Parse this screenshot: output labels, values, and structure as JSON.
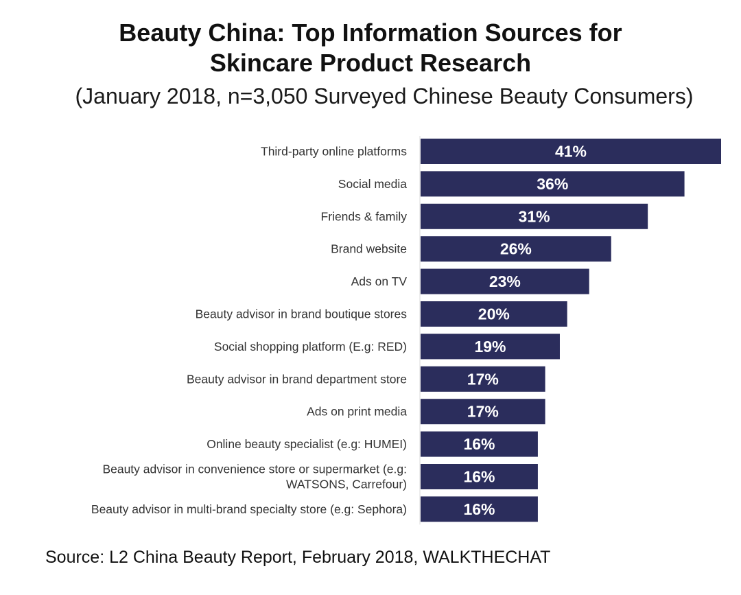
{
  "chart_data": {
    "type": "bar",
    "orientation": "horizontal",
    "title": [
      "Beauty China: Top Information Sources for",
      "Skincare Product Research"
    ],
    "subtitle": "(January 2018, n=3,050 Surveyed Chinese Beauty Consumers)",
    "categories": [
      [
        "Third-party online platforms"
      ],
      [
        "Social media"
      ],
      [
        "Friends & family"
      ],
      [
        "Brand website"
      ],
      [
        "Ads on TV"
      ],
      [
        "Beauty advisor in brand boutique stores"
      ],
      [
        "Social shopping platform (E.g: RED)"
      ],
      [
        "Beauty advisor in brand department store"
      ],
      [
        "Ads on print media"
      ],
      [
        "Online beauty specialist (e.g: HUMEI)"
      ],
      [
        "Beauty advisor in convenience store or supermarket (e.g:",
        "WATSONS, Carrefour)"
      ],
      [
        "Beauty advisor in multi-brand specialty store (e.g: Sephora)"
      ]
    ],
    "values": [
      41,
      36,
      31,
      26,
      23,
      20,
      19,
      17,
      17,
      16,
      16,
      16
    ],
    "value_labels": [
      "41%",
      "36%",
      "31%",
      "26%",
      "23%",
      "20%",
      "19%",
      "17%",
      "17%",
      "16%",
      "16%",
      "16%"
    ],
    "unit": "%",
    "xlim": [
      0,
      41
    ],
    "xlabel": "",
    "ylabel": "",
    "grid": false,
    "legend": "none",
    "bar_color": "#2b2d5c",
    "label_color": "#ffffff"
  },
  "source": "Source: L2 China Beauty Report, February 2018, WALKTHECHAT"
}
